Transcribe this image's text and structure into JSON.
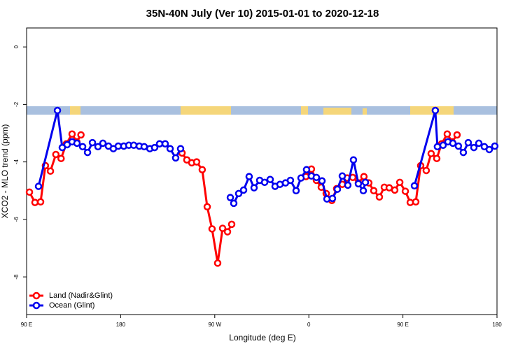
{
  "chart_data": {
    "type": "line",
    "title": "35N-40N July (Ver 10)   2015-01-01 to 2020-12-18",
    "x_label": "Longitude (deg E)",
    "y_label": "XCO2 - MLO trend (ppm)",
    "xlim": [
      90,
      540
    ],
    "ylim": [
      -9.31,
      0.66
    ],
    "xticks": [
      {
        "value": 90,
        "label": "90 E"
      },
      180,
      {
        "value": 270,
        "label": "90 W"
      },
      {
        "value": 360,
        "label": "0"
      },
      {
        "value": 450,
        "label": "90 E"
      },
      {
        "value": 540,
        "label": "180"
      }
    ],
    "yticks": [
      0,
      -2,
      -4,
      -6,
      -8
    ],
    "legend": "bottom-left",
    "series": [
      {
        "name": "Land (Nadir&Glint)",
        "color": "#ff0000",
        "x": [
          92.7,
          98,
          103.4,
          108,
          112.8,
          118,
          123,
          128,
          133.5,
          138,
          142,
          null,
          238.7,
          243.3,
          248,
          252.7,
          258,
          262.8,
          267.4,
          272.8,
          277.5,
          282.2,
          286.2,
          null,
          357.2,
          362.5,
          367.2,
          371.9,
          376.6,
          382,
          386.6,
          392,
          396.7,
          402,
          407.4,
          412.7,
          417.4,
          422.1,
          427.5,
          432.2,
          436.9,
          442.2,
          447,
          452.3,
          457,
          462.3,
          467,
          472.3,
          477,
          482.4,
          487,
          492.4,
          497,
          501.8
        ],
        "values": [
          -5.05,
          -5.41,
          -5.39,
          -4.13,
          -4.32,
          -3.74,
          -3.88,
          -3.37,
          -3.03,
          -3.3,
          -3.06,
          null,
          -3.69,
          -3.93,
          -4.03,
          -4.0,
          -4.27,
          -5.56,
          -6.33,
          -7.52,
          -6.31,
          -6.43,
          -6.17,
          null,
          -4.51,
          -4.25,
          -4.64,
          -4.88,
          -5.1,
          -5.34,
          -4.93,
          -4.78,
          -4.56,
          -4.54,
          -4.73,
          -4.51,
          -4.73,
          -5.0,
          -5.22,
          -4.88,
          -4.9,
          -4.98,
          -4.71,
          -5.02,
          -5.41,
          -5.39,
          -4.13,
          -4.3,
          -3.71,
          -3.88,
          -3.37,
          -3.03,
          -3.3,
          -3.06
        ]
      },
      {
        "name": "Ocean (Glint)",
        "color": "#0000ee",
        "x": [
          101.4,
          119.5,
          124.1,
          128.8,
          133.5,
          138.2,
          143.6,
          148.3,
          153,
          158.3,
          163,
          168.3,
          173,
          177.7,
          183,
          187.8,
          192.5,
          197.8,
          202.5,
          207.9,
          212.5,
          217.2,
          222.6,
          227.3,
          232.6,
          237.3,
          null,
          284.9,
          288.2,
          292.9,
          297.6,
          302.9,
          307.6,
          313,
          317.7,
          323,
          327.7,
          332.4,
          337.7,
          342.4,
          347.8,
          352.5,
          357.8,
          362.5,
          367.2,
          372.6,
          377.3,
          382.6,
          387.3,
          392,
          397.3,
          402.7,
          407.4,
          412.1,
          414.1,
          null,
          461,
          481,
          483,
          488.4,
          493.1,
          497.8,
          503.1,
          507.8,
          512.5,
          517.9,
          522.6,
          527.9,
          532.6,
          537.9
        ],
        "values": [
          -4.85,
          -2.21,
          -3.5,
          -3.4,
          -3.3,
          -3.35,
          -3.47,
          -3.67,
          -3.33,
          -3.47,
          -3.35,
          -3.45,
          -3.54,
          -3.45,
          -3.45,
          -3.42,
          -3.42,
          -3.45,
          -3.47,
          -3.54,
          -3.5,
          -3.37,
          -3.37,
          -3.54,
          -3.86,
          -3.54,
          null,
          -5.24,
          -5.44,
          -5.1,
          -4.98,
          -4.51,
          -4.9,
          -4.64,
          -4.71,
          -4.61,
          -4.85,
          -4.78,
          -4.73,
          -4.64,
          -5.0,
          -4.56,
          -4.27,
          -4.49,
          -4.54,
          -4.66,
          -5.29,
          -5.27,
          -4.95,
          -4.49,
          -4.81,
          -3.93,
          -4.76,
          -5.0,
          -4.71,
          null,
          -4.83,
          -2.21,
          -3.47,
          -3.42,
          -3.3,
          -3.35,
          -3.45,
          -3.67,
          -3.33,
          -3.5,
          -3.35,
          -3.47,
          -3.57,
          -3.45
        ]
      }
    ]
  }
}
